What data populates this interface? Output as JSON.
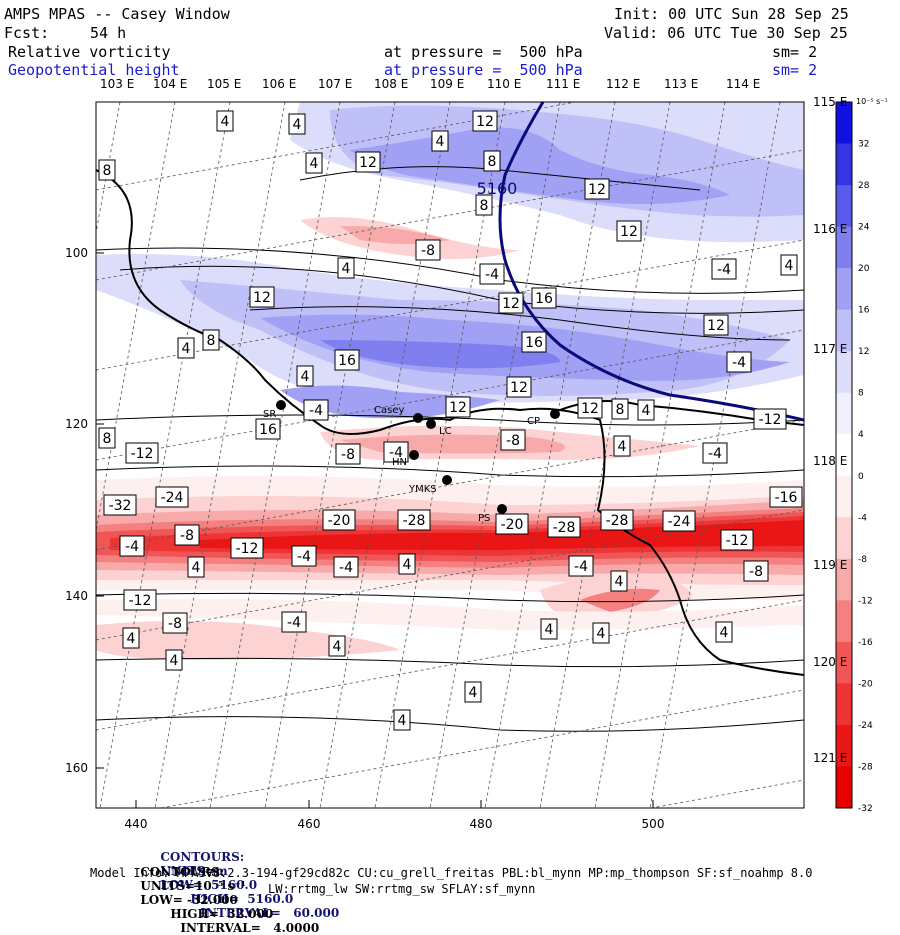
{
  "header": {
    "model": "AMPS MPAS -- Casey Window",
    "init": "Init: 00 UTC Sun 28 Sep 25",
    "fcst_label": "Fcst:",
    "fcst_value": "54 h",
    "valid": "Valid: 06 UTC Tue 30 Sep 25",
    "field1": {
      "name": "Relative vorticity",
      "level": "at pressure =  500 hPa",
      "sm": "sm= 2"
    },
    "field2": {
      "name": "Geopotential height",
      "level": "at pressure =  500 hPa",
      "sm": "sm= 2"
    }
  },
  "axes": {
    "top_lon": [
      "103 E",
      "104 E",
      "105 E",
      "106 E",
      "107 E",
      "108 E",
      "109 E",
      "110 E",
      "111 E",
      "112 E",
      "113 E",
      "114 E"
    ],
    "right_lon": [
      "115 E",
      "116 E",
      "117 E",
      "118 E",
      "119 E",
      "120 E",
      "121 E"
    ],
    "x_ticks": [
      "440",
      "460",
      "480",
      "500"
    ],
    "y_ticks": [
      "100",
      "120",
      "140",
      "160"
    ]
  },
  "colorbar": {
    "unit": "10⁻⁵ s⁻¹",
    "labels": [
      "32",
      "28",
      "24",
      "20",
      "16",
      "12",
      "8",
      "4",
      "0",
      "-4",
      "-8",
      "-12",
      "-16",
      "-20",
      "-24",
      "-28",
      "-32"
    ],
    "colors": [
      "#1010e0",
      "#3535e6",
      "#5a5aec",
      "#7f7ff0",
      "#a0a0f4",
      "#c0c0f8",
      "#dcdcfb",
      "#f0f0fe",
      "#ffffff",
      "#fff0f0",
      "#fcd2d2",
      "#f8aaaa",
      "#f48080",
      "#f05656",
      "#ee3535",
      "#ea1515",
      "#e60000"
    ]
  },
  "stations": [
    {
      "label": "SR"
    },
    {
      "label": "Casey"
    },
    {
      "label": "LC"
    },
    {
      "label": "CP"
    },
    {
      "label": "HN"
    },
    {
      "label": "YMKS"
    },
    {
      "label": "PS"
    }
  ],
  "contour_labels": [
    "4",
    "4",
    "12",
    "4",
    "12",
    "4",
    "8",
    "8",
    "12",
    "8",
    "5160",
    "-8",
    "4",
    "-4",
    "12",
    "-4",
    "4",
    "12",
    "12",
    "16",
    "12",
    "16",
    "4",
    "8",
    "16",
    "4",
    "12",
    "-4",
    "-4",
    "16",
    "12",
    "12",
    "8",
    "4",
    "8",
    "-12",
    "-8",
    "4",
    "-8",
    "-4",
    "-4",
    "-12",
    "-16",
    "-24",
    "-32",
    "-20",
    "-28",
    "-20",
    "-28",
    "-28",
    "-24",
    "-4",
    "-8",
    "-12",
    "-4",
    "-12",
    "-4",
    "4",
    "-4",
    "4",
    "4",
    "-8",
    "-12",
    "-8",
    "-4",
    "4",
    "4",
    "4",
    "4",
    "4",
    "4",
    "4",
    "4"
  ],
  "footer": {
    "height_contours": {
      "label": "CONTOURS:",
      "units": "UNITS=m",
      "low": "LOW=  5160.0",
      "high": "HIGH=  5160.0",
      "interval": "INTERVAL=   60.000"
    },
    "vort_contours": {
      "label": "CONTOURS:",
      "units": "UNITS=10⁻⁵ s⁻¹",
      "low": "LOW= -32.000",
      "high": "HIGH=  32.000",
      "interval": "INTERVAL=   4.0000"
    },
    "model_info": "Model Info: MPASv8.2.3-194-gf29cd82c CU:cu_grell_freitas PBL:bl_mynn MP:mp_thompson SF:sf_noahmp 8.0",
    "model_info2": "LW:rrtmg_lw SW:rrtmg_sw SFLAY:sf_mynn"
  }
}
